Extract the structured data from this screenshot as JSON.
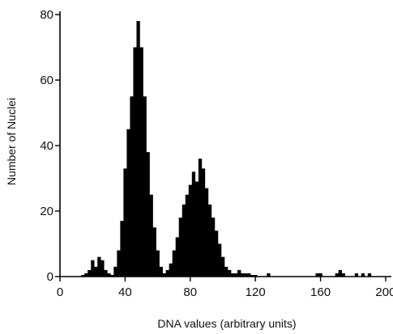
{
  "chart_data": {
    "type": "bar",
    "title": "",
    "xlabel": "DNA values (arbitrary units)",
    "ylabel": "Number of Nuclei",
    "xlim": [
      0,
      205
    ],
    "ylim": [
      0,
      80
    ],
    "xticks": [
      0,
      40,
      80,
      120,
      160,
      200
    ],
    "yticks": [
      0,
      20,
      40,
      60,
      80
    ],
    "bin_width": 2,
    "x": [
      14,
      16,
      18,
      20,
      22,
      24,
      26,
      28,
      30,
      32,
      34,
      36,
      38,
      40,
      42,
      44,
      46,
      48,
      50,
      52,
      54,
      56,
      58,
      60,
      62,
      64,
      66,
      68,
      70,
      72,
      74,
      76,
      78,
      80,
      82,
      84,
      86,
      88,
      90,
      92,
      94,
      96,
      98,
      100,
      102,
      104,
      106,
      108,
      110,
      112,
      114,
      116,
      118,
      120,
      128,
      158,
      160,
      170,
      172,
      174,
      182,
      186,
      190
    ],
    "values": [
      0.5,
      1,
      2,
      5,
      3,
      6,
      5,
      2,
      1,
      0.5,
      3,
      8,
      17,
      33,
      45,
      55,
      70,
      78,
      70,
      55,
      38,
      25,
      15,
      8,
      3,
      1,
      2,
      4,
      8,
      12,
      18,
      22,
      25,
      28,
      32,
      29,
      36,
      33,
      27,
      22,
      18,
      14,
      10,
      6,
      3,
      2,
      1,
      1,
      2,
      1,
      1,
      1,
      0.5,
      0.5,
      1,
      1,
      1,
      1,
      2,
      1,
      1,
      1,
      1
    ],
    "grid": false,
    "color": "#000000"
  }
}
